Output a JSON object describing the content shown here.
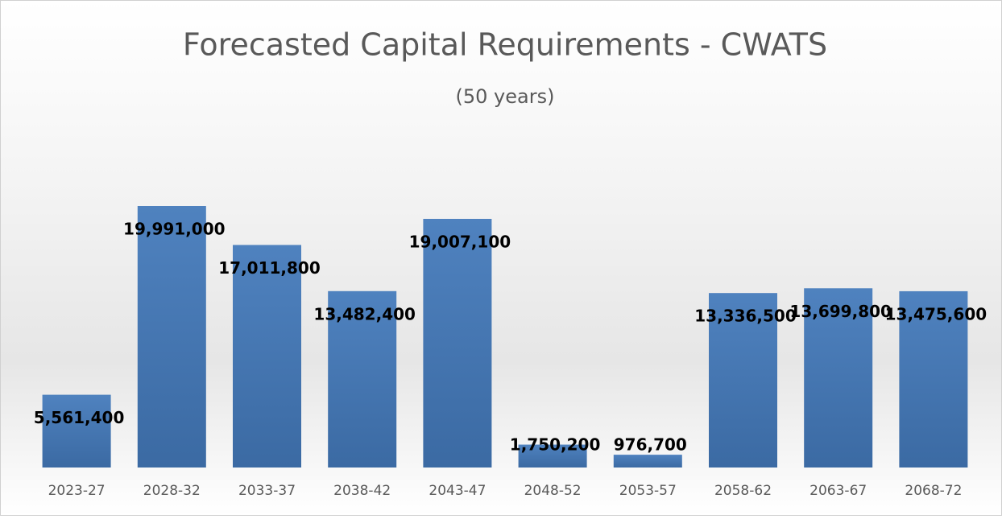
{
  "chart_data": {
    "type": "bar",
    "title": "Forecasted Capital Requirements - CWATS",
    "subtitle": "(50 years)",
    "categories": [
      "2023-27",
      "2028-32",
      "2033-37",
      "2038-42",
      "2043-47",
      "2048-52",
      "2053-57",
      "2058-62",
      "2063-67",
      "2068-72"
    ],
    "values": [
      5561400,
      19991000,
      17011800,
      13482400,
      19007100,
      1750200,
      976700,
      13336500,
      13699800,
      13475600
    ],
    "value_labels": [
      "5,561,400",
      "19,991,000",
      "17,011,800",
      "13,482,400",
      "19,007,100",
      "1,750,200",
      "976,700",
      "13,336,500",
      "13,699,800",
      "13,475,600"
    ],
    "color": "#4a7bbb"
  }
}
